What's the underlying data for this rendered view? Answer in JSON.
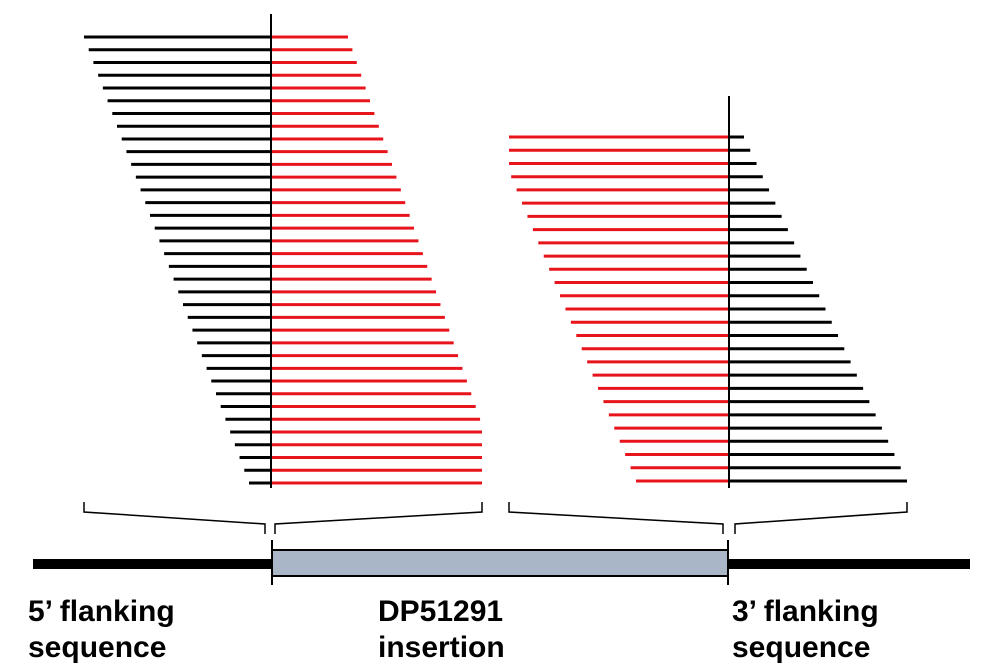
{
  "labels": {
    "five_prime": [
      "5’ flanking",
      "sequence"
    ],
    "insertion": [
      "DP51291",
      "insertion"
    ],
    "three_prime": [
      "3’ flanking",
      "sequence"
    ]
  },
  "colors": {
    "flank_read": "#000000",
    "insert_read": "#e8141c",
    "insert_box_fill": "#a9b6c8",
    "backbone": "#000000"
  },
  "diagram": {
    "five_prime_junction_reads": 36,
    "three_prime_junction_reads": 27
  }
}
